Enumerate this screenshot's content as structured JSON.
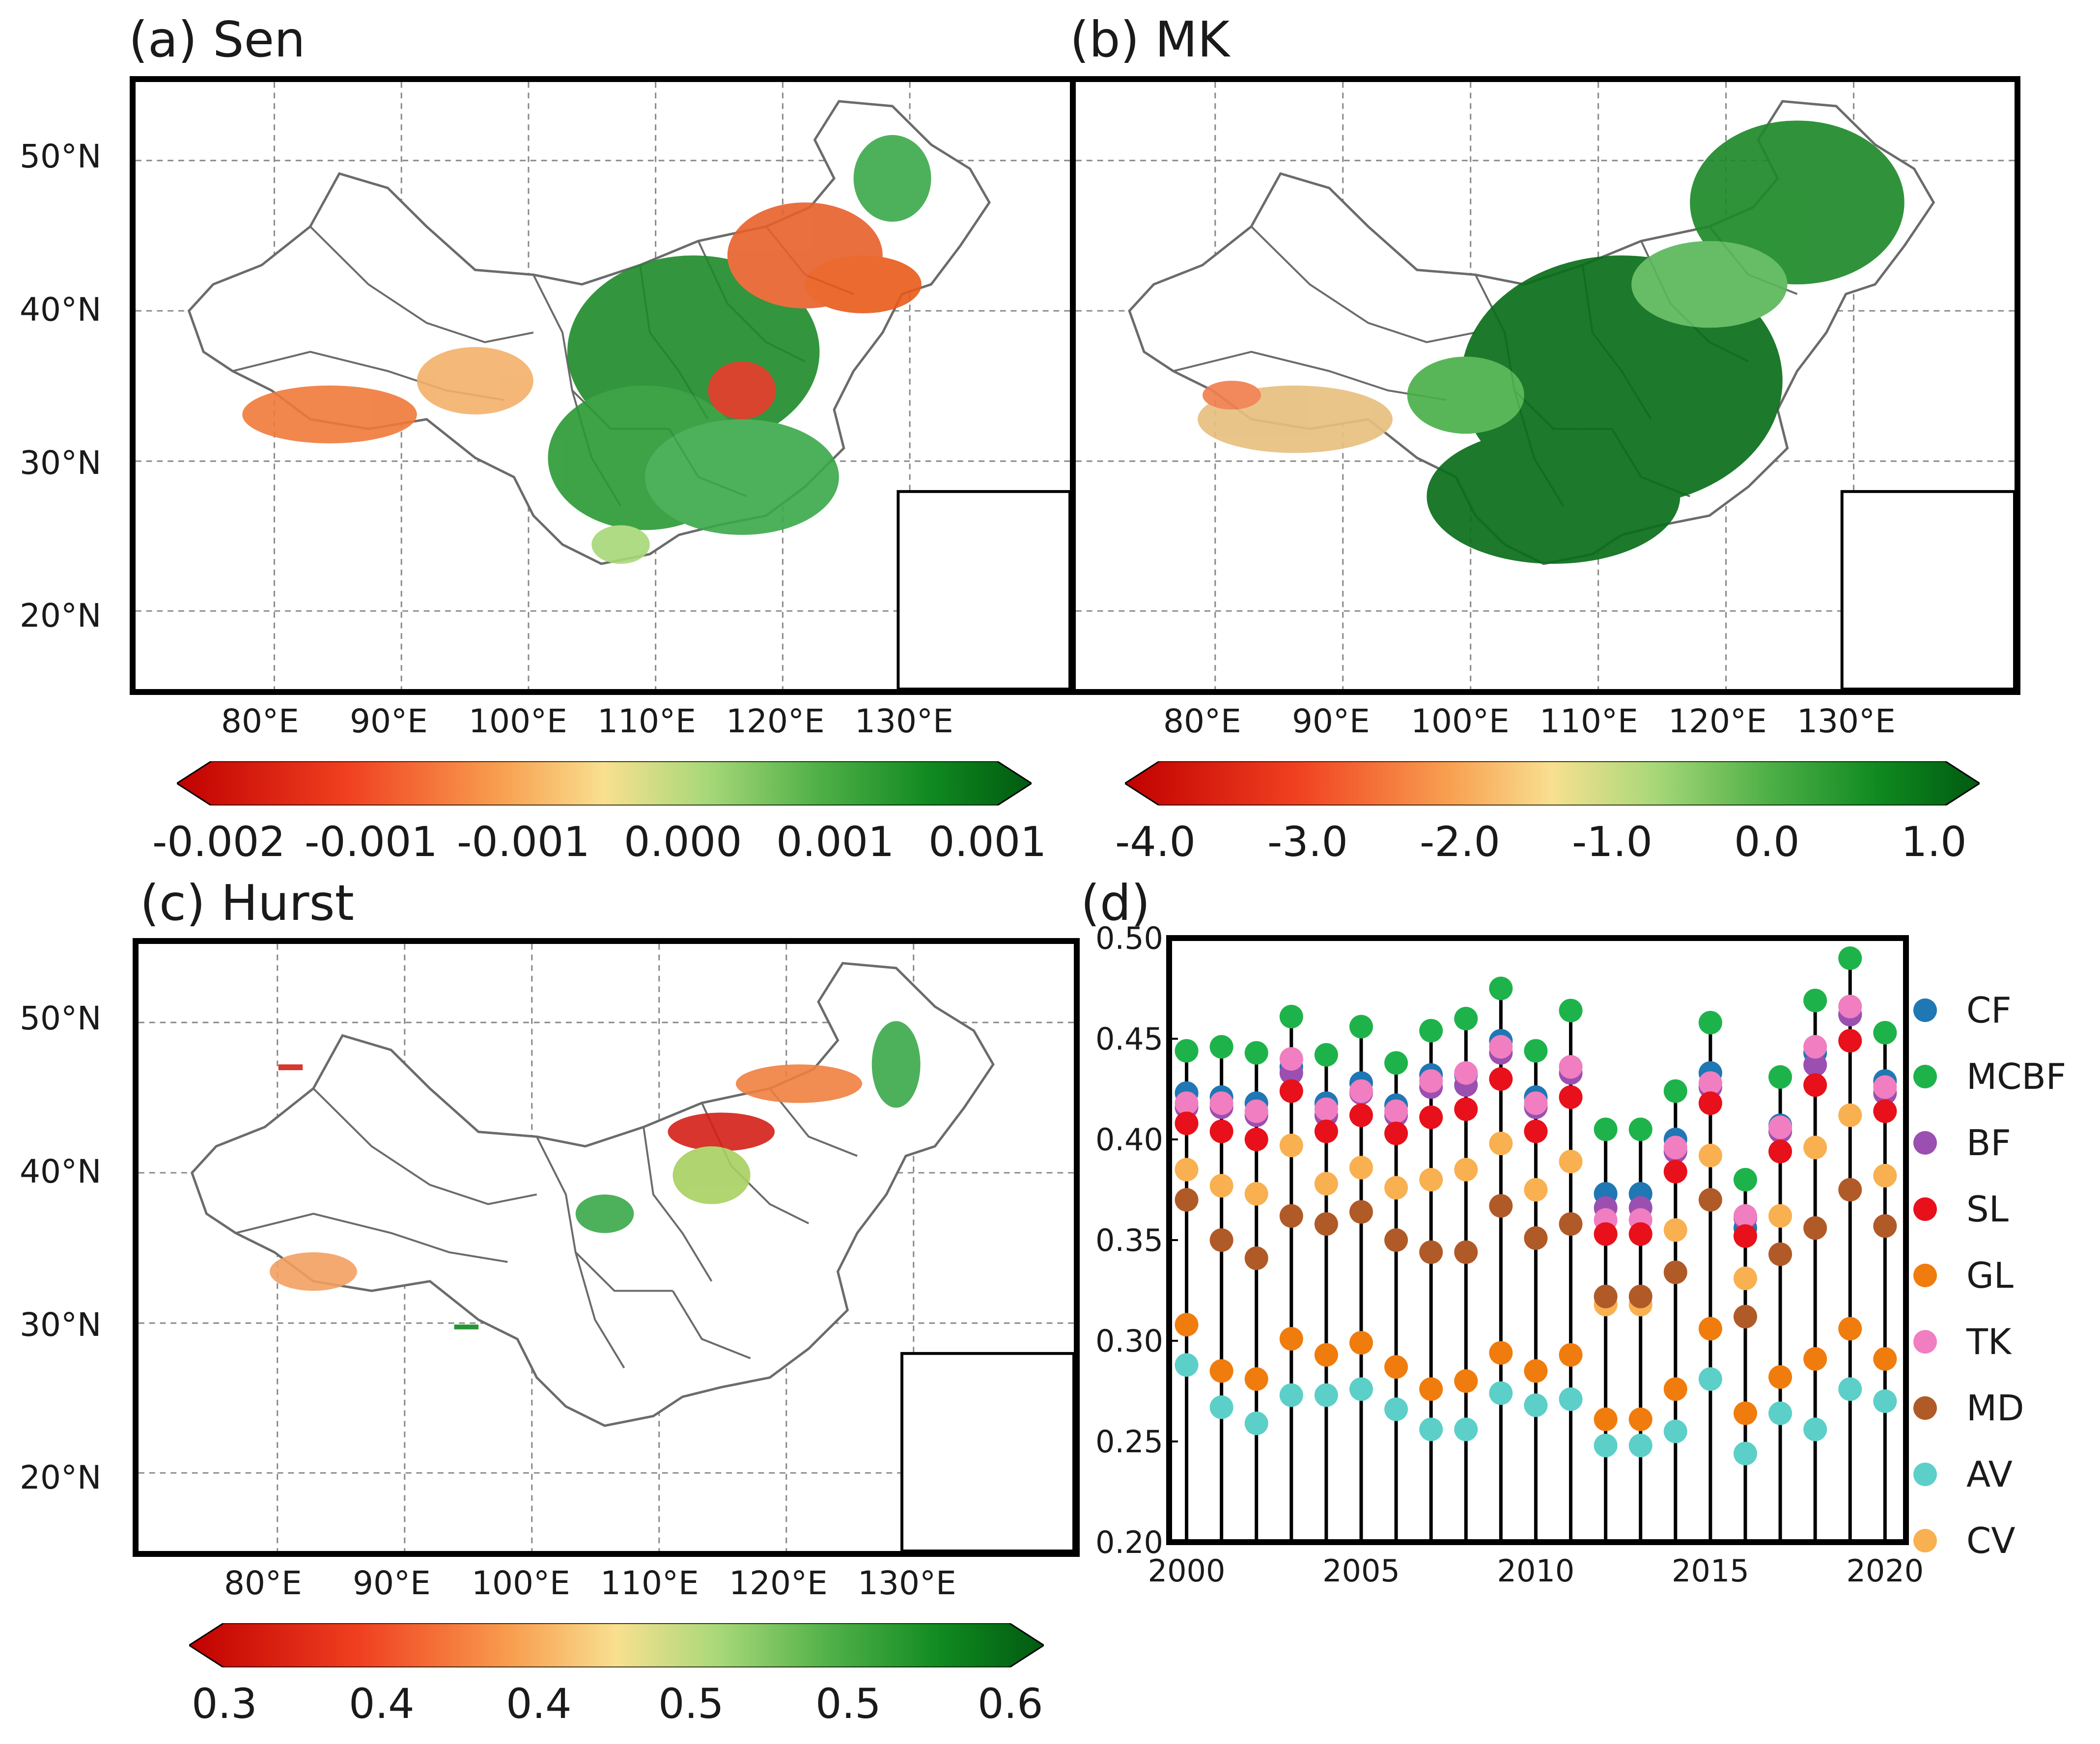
{
  "panels": {
    "a": {
      "title": "(a) Sen"
    },
    "b": {
      "title": "(b) MK"
    },
    "c": {
      "title": "(c) Hurst"
    },
    "d": {
      "title": "(d)"
    }
  },
  "map_axes": {
    "lat_labels": [
      "50°N",
      "40°N",
      "30°N",
      "20°N"
    ],
    "lon_labels": [
      "80°E",
      "90°E",
      "100°E",
      "110°E",
      "120°E",
      "130°E"
    ]
  },
  "colorbars": {
    "a": {
      "ticks": [
        "-0.002",
        "-0.001",
        "-0.001",
        "0.000",
        "0.001",
        "0.001"
      ]
    },
    "b": {
      "ticks": [
        "-4.0",
        "-3.0",
        "-2.0",
        "-1.0",
        "0.0",
        "1.0"
      ]
    },
    "c": {
      "ticks": [
        "0.3",
        "0.4",
        "0.4",
        "0.5",
        "0.5",
        "0.6"
      ]
    },
    "colors": [
      "#c00000",
      "#f04020",
      "#f8a050",
      "#f8e090",
      "#a8d878",
      "#50b048",
      "#108a20",
      "#005a10"
    ]
  },
  "chart_data": {
    "type": "scatter",
    "title": "(d)",
    "x": [
      2000,
      2001,
      2002,
      2003,
      2004,
      2005,
      2006,
      2007,
      2008,
      2009,
      2010,
      2011,
      2012,
      2013,
      2014,
      2015,
      2016,
      2017,
      2018,
      2019,
      2020
    ],
    "xticks": [
      "2000",
      "2005",
      "2010",
      "2015",
      "2020"
    ],
    "yticks": [
      "0.20",
      "0.25",
      "0.30",
      "0.35",
      "0.40",
      "0.45",
      "0.50"
    ],
    "ylim": [
      0.2,
      0.5
    ],
    "xlim": [
      1999.5,
      2020.6
    ],
    "series": [
      {
        "name": "CF",
        "color": "#1f77b4",
        "values": [
          0.423,
          0.421,
          0.418,
          0.436,
          0.418,
          0.428,
          0.417,
          0.432,
          0.432,
          0.449,
          0.421,
          0.436,
          0.373,
          0.373,
          0.4,
          0.433,
          0.356,
          0.407,
          0.443,
          0.462,
          0.429
        ]
      },
      {
        "name": "MCBF",
        "color": "#1db34a",
        "values": [
          0.444,
          0.446,
          0.443,
          0.461,
          0.442,
          0.456,
          0.438,
          0.454,
          0.46,
          0.475,
          0.444,
          0.464,
          0.405,
          0.405,
          0.424,
          0.458,
          0.38,
          0.431,
          0.469,
          0.49,
          0.453
        ]
      },
      {
        "name": "BF",
        "color": "#9b4fb0",
        "values": [
          0.416,
          0.416,
          0.412,
          0.433,
          0.412,
          0.423,
          0.412,
          0.426,
          0.427,
          0.443,
          0.416,
          0.433,
          0.366,
          0.366,
          0.394,
          0.426,
          0.361,
          0.404,
          0.437,
          0.462,
          0.423
        ]
      },
      {
        "name": "SL",
        "color": "#e8101a",
        "values": [
          0.408,
          0.404,
          0.4,
          0.424,
          0.404,
          0.412,
          0.403,
          0.411,
          0.415,
          0.43,
          0.404,
          0.421,
          0.353,
          0.353,
          0.384,
          0.418,
          0.352,
          0.394,
          0.427,
          0.449,
          0.414
        ]
      },
      {
        "name": "GL",
        "color": "#f07c0e",
        "values": [
          0.308,
          0.285,
          0.281,
          0.301,
          0.293,
          0.299,
          0.287,
          0.276,
          0.28,
          0.294,
          0.285,
          0.293,
          0.261,
          0.261,
          0.276,
          0.306,
          0.264,
          0.282,
          0.291,
          0.306,
          0.291
        ]
      },
      {
        "name": "TK",
        "color": "#f07ec0",
        "values": [
          0.418,
          0.418,
          0.414,
          0.44,
          0.415,
          0.424,
          0.414,
          0.429,
          0.433,
          0.446,
          0.418,
          0.436,
          0.36,
          0.36,
          0.396,
          0.428,
          0.362,
          0.406,
          0.446,
          0.466,
          0.426
        ]
      },
      {
        "name": "MD",
        "color": "#b05a28",
        "values": [
          0.37,
          0.35,
          0.341,
          0.362,
          0.358,
          0.364,
          0.35,
          0.344,
          0.344,
          0.367,
          0.351,
          0.358,
          0.322,
          0.322,
          0.334,
          0.37,
          0.312,
          0.343,
          0.356,
          0.375,
          0.357
        ]
      },
      {
        "name": "AV",
        "color": "#5ccfc8",
        "values": [
          0.288,
          0.267,
          0.259,
          0.273,
          0.273,
          0.276,
          0.266,
          0.256,
          0.256,
          0.274,
          0.268,
          0.271,
          0.248,
          0.248,
          0.255,
          0.281,
          0.244,
          0.264,
          0.256,
          0.276,
          0.27
        ]
      },
      {
        "name": "CV",
        "color": "#f8b050",
        "values": [
          0.385,
          0.377,
          0.373,
          0.397,
          0.378,
          0.386,
          0.376,
          0.38,
          0.385,
          0.398,
          0.375,
          0.389,
          0.318,
          0.318,
          0.355,
          0.392,
          0.331,
          0.362,
          0.396,
          0.412,
          0.382
        ]
      }
    ]
  }
}
